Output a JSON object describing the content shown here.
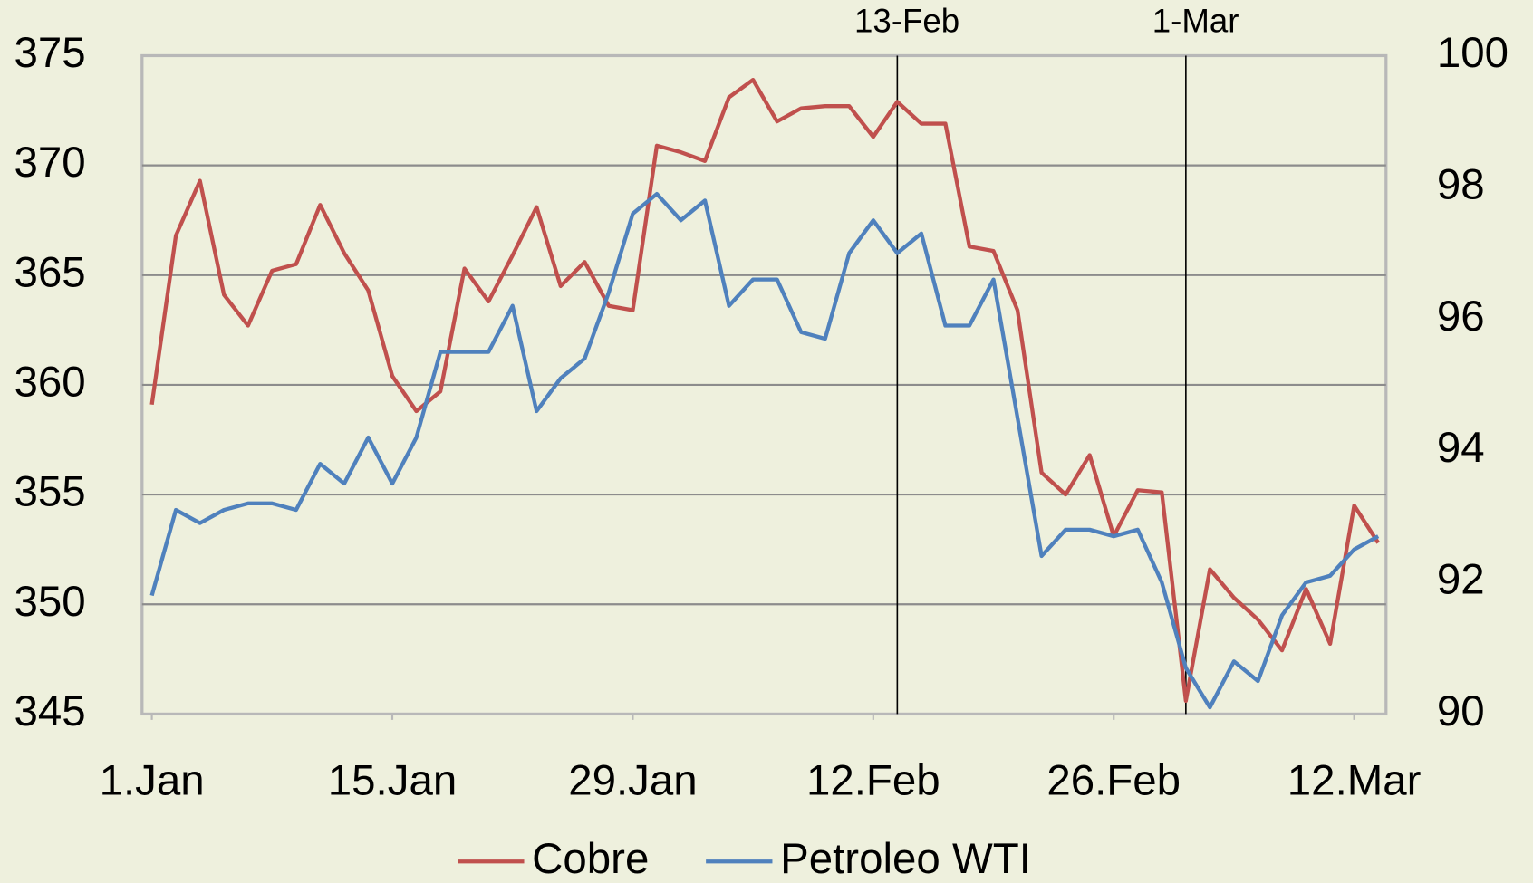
{
  "chart_data": {
    "type": "line",
    "x": [
      "1-Jan",
      "2-Jan",
      "3-Jan",
      "4-Jan",
      "7-Jan",
      "8-Jan",
      "9-Jan",
      "10-Jan",
      "11-Jan",
      "14-Jan",
      "15-Jan",
      "16-Jan",
      "17-Jan",
      "18-Jan",
      "21-Jan",
      "22-Jan",
      "23-Jan",
      "24-Jan",
      "25-Jan",
      "28-Jan",
      "29-Jan",
      "30-Jan",
      "31-Jan",
      "1-Feb",
      "4-Feb",
      "5-Feb",
      "6-Feb",
      "7-Feb",
      "8-Feb",
      "11-Feb",
      "12-Feb",
      "13-Feb",
      "14-Feb",
      "15-Feb",
      "18-Feb",
      "19-Feb",
      "20-Feb",
      "21-Feb",
      "22-Feb",
      "25-Feb",
      "26-Feb",
      "27-Feb",
      "28-Feb",
      "1-Mar",
      "4-Mar",
      "5-Mar",
      "6-Mar",
      "7-Mar",
      "8-Mar",
      "11-Mar",
      "12-Mar",
      "13-Mar"
    ],
    "xticks": [
      {
        "value": "1-Jan",
        "label": "1.Jan"
      },
      {
        "value": "15-Jan",
        "label": "15.Jan"
      },
      {
        "value": "29-Jan",
        "label": "29.Jan"
      },
      {
        "value": "12-Feb",
        "label": "12.Feb"
      },
      {
        "value": "26-Feb",
        "label": "26.Feb"
      },
      {
        "value": "12-Mar",
        "label": "12.Mar"
      }
    ],
    "series": [
      {
        "name": "Cobre",
        "color": "#c0504d",
        "values": [
          359.1,
          366.8,
          369.3,
          364.1,
          362.7,
          365.2,
          365.5,
          368.2,
          366.0,
          364.3,
          360.4,
          358.8,
          359.7,
          365.3,
          363.8,
          365.9,
          368.1,
          364.5,
          365.6,
          363.6,
          363.4,
          370.9,
          370.6,
          370.2,
          373.1,
          373.9,
          372.0,
          372.6,
          372.7,
          372.7,
          371.3,
          372.9,
          371.9,
          371.9,
          366.3,
          366.1,
          363.4,
          356.0,
          355.0,
          356.8,
          353.1,
          355.2,
          355.1,
          345.6,
          351.6,
          350.3,
          349.3,
          347.9,
          350.7,
          348.2,
          354.5,
          352.8
        ]
      },
      {
        "name": "Petroleo WTI",
        "color": "#4f81bd",
        "axis": "y2",
        "values": [
          91.8,
          93.1,
          92.9,
          93.1,
          93.2,
          93.2,
          93.1,
          93.8,
          93.5,
          94.2,
          93.5,
          94.2,
          95.5,
          95.5,
          95.5,
          96.2,
          94.6,
          95.1,
          95.4,
          96.4,
          97.6,
          97.9,
          97.5,
          97.8,
          96.2,
          96.6,
          96.6,
          95.8,
          95.7,
          97.0,
          97.5,
          97.0,
          97.3,
          95.9,
          95.9,
          96.6,
          94.5,
          92.4,
          92.8,
          92.8,
          92.7,
          92.8,
          92.0,
          90.7,
          90.1,
          90.8,
          90.5,
          91.5,
          92.0,
          92.1,
          92.5,
          92.7
        ]
      }
    ],
    "ylim": [
      345,
      375
    ],
    "yticks": [
      345,
      350,
      355,
      360,
      365,
      370,
      375
    ],
    "y2lim": [
      90,
      100
    ],
    "y2ticks": [
      90,
      92,
      94,
      96,
      98,
      100
    ],
    "annotations": [
      "13-Feb",
      "1-Mar"
    ],
    "grid": true,
    "legend": "bottom"
  }
}
